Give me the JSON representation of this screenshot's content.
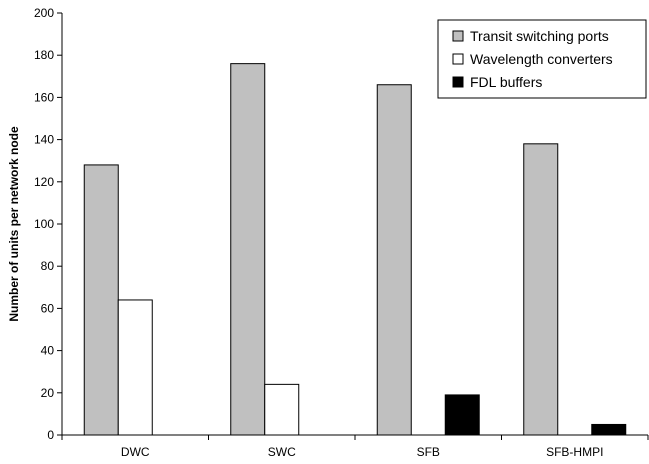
{
  "chart_data": {
    "type": "bar",
    "title": "",
    "xlabel": "",
    "ylabel": "Number of units per network node",
    "ylim": [
      0,
      200
    ],
    "yticks": [
      0,
      20,
      40,
      60,
      80,
      100,
      120,
      140,
      160,
      180,
      200
    ],
    "categories": [
      "DWC",
      "SWC",
      "SFB",
      "SFB-HMPI"
    ],
    "series": [
      {
        "name": "Transit switching ports",
        "values": [
          128,
          176,
          166,
          138
        ],
        "color": "#c0c0c0"
      },
      {
        "name": "Wavelength converters",
        "values": [
          64,
          24,
          0,
          0
        ],
        "color": "#ffffff"
      },
      {
        "name": "FDL buffers",
        "values": [
          0,
          0,
          19,
          5
        ],
        "color": "#000000"
      }
    ],
    "grid": false,
    "legend_position": "top-right"
  }
}
